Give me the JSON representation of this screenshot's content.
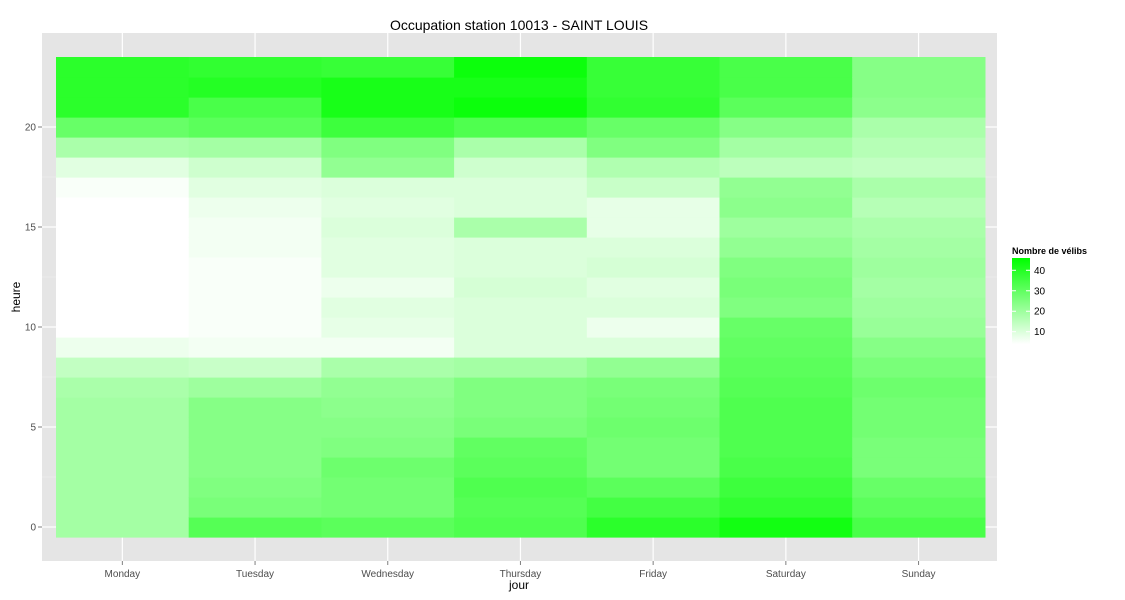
{
  "chart_data": {
    "type": "heatmap",
    "title": "Occupation station 10013 - SAINT LOUIS",
    "xlabel": "jour",
    "ylabel": "heure",
    "x_categories": [
      "Monday",
      "Tuesday",
      "Wednesday",
      "Thursday",
      "Friday",
      "Saturday",
      "Sunday"
    ],
    "hours": [
      0,
      1,
      2,
      3,
      4,
      5,
      6,
      7,
      8,
      9,
      10,
      11,
      12,
      13,
      14,
      15,
      16,
      17,
      18,
      19,
      20,
      21,
      22,
      23
    ],
    "y_ticks": [
      0,
      5,
      10,
      15,
      20
    ],
    "ylim": [
      -0.5,
      23.5
    ],
    "grid": true,
    "legend": {
      "title": "Nombre de vélibs",
      "position": "right",
      "ticks": [
        10,
        20,
        30,
        40
      ],
      "min": 4,
      "max": 46,
      "low_color": "#ffffff",
      "high_color": "#00ff00"
    },
    "values": {
      "Monday": [
        19,
        19,
        19,
        19,
        19,
        19,
        19,
        18,
        14,
        7,
        4,
        4,
        4,
        4,
        4,
        4,
        4,
        5,
        9,
        18,
        29,
        39,
        39,
        39
      ],
      "Tuesday": [
        32,
        26,
        25,
        24,
        24,
        24,
        24,
        20,
        13,
        6,
        5,
        5,
        5,
        5,
        6,
        6,
        7,
        9,
        12,
        19,
        31,
        34,
        40,
        38
      ],
      "Wednesday": [
        31,
        27,
        27,
        28,
        25,
        24,
        23,
        22,
        18,
        6,
        8,
        9,
        7,
        9,
        9,
        10,
        9,
        10,
        22,
        25,
        36,
        42,
        42,
        37
      ],
      "Thursday": [
        33,
        32,
        33,
        31,
        30,
        26,
        25,
        25,
        19,
        10,
        10,
        10,
        11,
        10,
        10,
        18,
        10,
        10,
        12,
        18,
        33,
        44,
        42,
        44
      ],
      "Friday": [
        39,
        35,
        31,
        27,
        27,
        28,
        27,
        26,
        22,
        10,
        7,
        10,
        9,
        11,
        10,
        8,
        8,
        13,
        17,
        25,
        29,
        38,
        37,
        37
      ],
      "Saturday": [
        43,
        38,
        36,
        34,
        33,
        33,
        33,
        32,
        31,
        30,
        29,
        25,
        26,
        25,
        22,
        20,
        23,
        22,
        15,
        19,
        24,
        31,
        34,
        34
      ],
      "Sunday": [
        34,
        31,
        29,
        26,
        26,
        27,
        27,
        28,
        26,
        24,
        21,
        20,
        19,
        20,
        19,
        18,
        16,
        18,
        14,
        16,
        18,
        23,
        24,
        24
      ]
    }
  }
}
